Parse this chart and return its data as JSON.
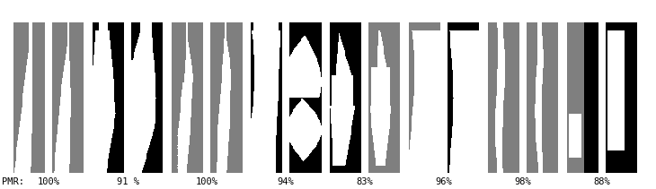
{
  "pmr_labels": [
    "100%",
    "91 %",
    "100%",
    "94%",
    "83%",
    "96%",
    "98%",
    "88%"
  ],
  "bg_color": "#ffffff",
  "text_color": "#000000",
  "label_prefix": "PMR:",
  "fig_width": 7.3,
  "fig_height": 2.11,
  "dpi": 100,
  "n_pairs": 8
}
